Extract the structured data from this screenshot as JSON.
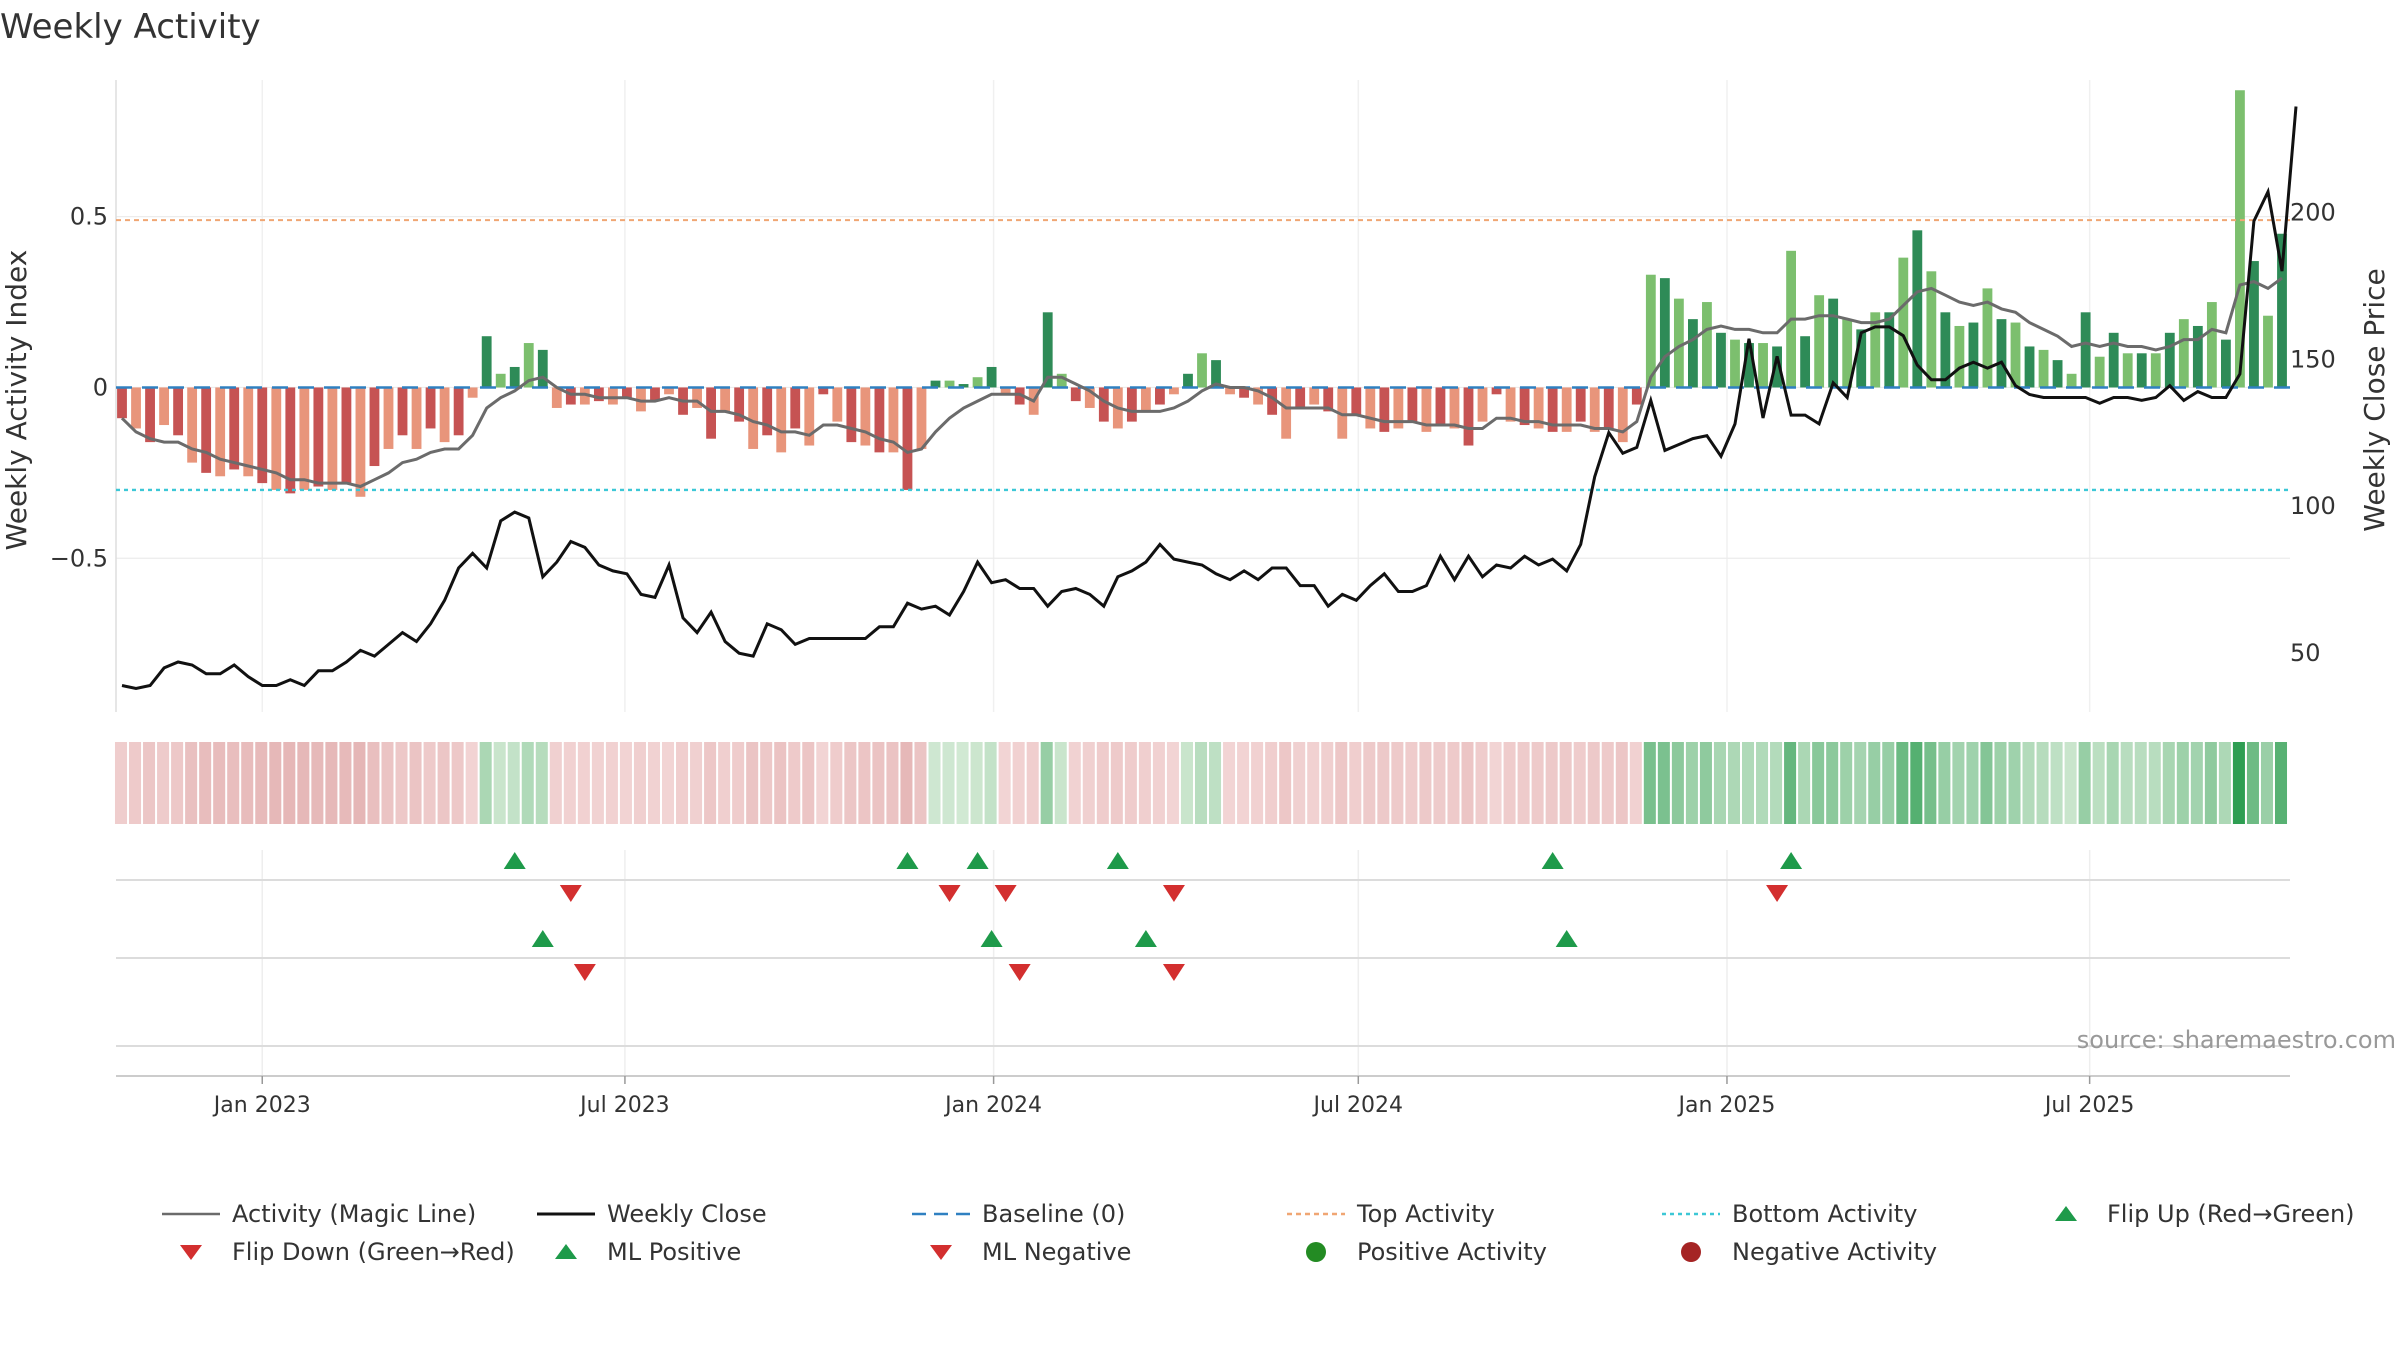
{
  "chart_data": {
    "type": "bar",
    "title": "Weekly Activity",
    "ylabel_left": "Weekly Activity Index",
    "ylabel_right": "Weekly Close Price",
    "source": "source: sharemaestro.com",
    "x_start": "2022-10-23",
    "x_step_days": 7,
    "x_ticks": [
      {
        "date": "2023-01-01",
        "label": "Jan 2023"
      },
      {
        "date": "2023-07-01",
        "label": "Jul 2023"
      },
      {
        "date": "2024-01-01",
        "label": "Jan 2024"
      },
      {
        "date": "2024-07-01",
        "label": "Jul 2024"
      },
      {
        "date": "2025-01-01",
        "label": "Jan 2025"
      },
      {
        "date": "2025-07-01",
        "label": "Jul 2025"
      }
    ],
    "y_left": {
      "lim": [
        -0.95,
        0.9
      ],
      "ticks": [
        {
          "v": 0.5,
          "label": "0.5"
        },
        {
          "v": 0,
          "label": "0"
        },
        {
          "v": -0.5,
          "label": "−0.5"
        }
      ]
    },
    "y_right": {
      "lim": [
        30,
        245
      ],
      "ticks": [
        {
          "v": 50,
          "label": "50"
        },
        {
          "v": 100,
          "label": "100"
        },
        {
          "v": 150,
          "label": "150"
        },
        {
          "v": 200,
          "label": "200"
        }
      ]
    },
    "top_activity": 0.49,
    "bottom_activity": -0.3,
    "activity": [
      -0.09,
      -0.12,
      -0.16,
      -0.11,
      -0.14,
      -0.22,
      -0.25,
      -0.26,
      -0.24,
      -0.26,
      -0.28,
      -0.3,
      -0.31,
      -0.3,
      -0.29,
      -0.3,
      -0.28,
      -0.32,
      -0.23,
      -0.18,
      -0.14,
      -0.18,
      -0.12,
      -0.16,
      -0.14,
      -0.03,
      0.15,
      0.04,
      0.06,
      0.13,
      0.11,
      -0.06,
      -0.05,
      -0.05,
      -0.04,
      -0.05,
      -0.03,
      -0.07,
      -0.04,
      -0.02,
      -0.08,
      -0.06,
      -0.15,
      -0.07,
      -0.1,
      -0.18,
      -0.14,
      -0.19,
      -0.12,
      -0.17,
      -0.02,
      -0.1,
      -0.16,
      -0.17,
      -0.19,
      -0.19,
      -0.3,
      -0.18,
      0.02,
      0.02,
      0.01,
      0.03,
      0.06,
      -0.02,
      -0.05,
      -0.08,
      0.22,
      0.04,
      -0.04,
      -0.06,
      -0.1,
      -0.12,
      -0.1,
      -0.07,
      -0.05,
      -0.02,
      0.04,
      0.1,
      0.08,
      -0.02,
      -0.03,
      -0.05,
      -0.08,
      -0.15,
      -0.06,
      -0.05,
      -0.07,
      -0.15,
      -0.08,
      -0.12,
      -0.13,
      -0.12,
      -0.1,
      -0.13,
      -0.11,
      -0.12,
      -0.17,
      -0.1,
      -0.02,
      -0.1,
      -0.11,
      -0.12,
      -0.13,
      -0.13,
      -0.1,
      -0.13,
      -0.12,
      -0.16,
      -0.05,
      0.33,
      0.32,
      0.26,
      0.2,
      0.25,
      0.16,
      0.14,
      0.13,
      0.13,
      0.12,
      0.4,
      0.15,
      0.27,
      0.26,
      0.2,
      0.17,
      0.22,
      0.22,
      0.38,
      0.46,
      0.34,
      0.22,
      0.18,
      0.19,
      0.29,
      0.2,
      0.19,
      0.12,
      0.11,
      0.08,
      0.04,
      0.22,
      0.09,
      0.16,
      0.1,
      0.1,
      0.1,
      0.16,
      0.2,
      0.18,
      0.25,
      0.14,
      0.87,
      0.37,
      0.21,
      0.45
    ],
    "magic_line": [
      -0.09,
      -0.13,
      -0.15,
      -0.16,
      -0.16,
      -0.18,
      -0.19,
      -0.21,
      -0.22,
      -0.23,
      -0.24,
      -0.25,
      -0.27,
      -0.27,
      -0.28,
      -0.28,
      -0.28,
      -0.29,
      -0.27,
      -0.25,
      -0.22,
      -0.21,
      -0.19,
      -0.18,
      -0.18,
      -0.14,
      -0.06,
      -0.03,
      -0.01,
      0.02,
      0.03,
      0,
      -0.02,
      -0.02,
      -0.03,
      -0.03,
      -0.03,
      -0.04,
      -0.04,
      -0.03,
      -0.04,
      -0.04,
      -0.07,
      -0.07,
      -0.08,
      -0.1,
      -0.11,
      -0.13,
      -0.13,
      -0.14,
      -0.11,
      -0.11,
      -0.12,
      -0.13,
      -0.15,
      -0.16,
      -0.19,
      -0.18,
      -0.13,
      -0.09,
      -0.06,
      -0.04,
      -0.02,
      -0.02,
      -0.02,
      -0.04,
      0.03,
      0.03,
      0.01,
      -0.01,
      -0.04,
      -0.06,
      -0.07,
      -0.07,
      -0.07,
      -0.06,
      -0.04,
      -0.01,
      0.01,
      0,
      0,
      -0.01,
      -0.03,
      -0.06,
      -0.06,
      -0.06,
      -0.06,
      -0.08,
      -0.08,
      -0.09,
      -0.1,
      -0.1,
      -0.1,
      -0.11,
      -0.11,
      -0.11,
      -0.12,
      -0.12,
      -0.09,
      -0.09,
      -0.1,
      -0.1,
      -0.11,
      -0.11,
      -0.11,
      -0.12,
      -0.12,
      -0.13,
      -0.1,
      0.03,
      0.09,
      0.12,
      0.14,
      0.17,
      0.18,
      0.17,
      0.17,
      0.16,
      0.16,
      0.2,
      0.2,
      0.21,
      0.21,
      0.2,
      0.19,
      0.19,
      0.2,
      0.24,
      0.28,
      0.29,
      0.27,
      0.25,
      0.24,
      0.25,
      0.23,
      0.22,
      0.19,
      0.17,
      0.15,
      0.12,
      0.13,
      0.12,
      0.13,
      0.12,
      0.12,
      0.11,
      0.12,
      0.14,
      0.14,
      0.17,
      0.16,
      0.3,
      0.31,
      0.29,
      0.32
    ],
    "weekly_close": [
      39,
      38,
      39,
      45,
      47,
      46,
      43,
      43,
      46,
      42,
      39,
      39,
      41,
      39,
      44,
      44,
      47,
      51,
      49,
      53,
      57,
      54,
      60,
      68,
      79,
      84,
      79,
      95,
      98,
      96,
      76,
      81,
      88,
      86,
      80,
      78,
      77,
      70,
      69,
      80,
      62,
      57,
      64,
      54,
      50,
      49,
      60,
      58,
      53,
      55,
      55,
      55,
      55,
      55,
      59,
      59,
      67,
      65,
      66,
      63,
      71,
      81,
      74,
      75,
      72,
      72,
      66,
      71,
      72,
      70,
      66,
      76,
      78,
      81,
      87,
      82,
      81,
      80,
      77,
      75,
      78,
      75,
      79,
      79,
      73,
      73,
      66,
      70,
      68,
      73,
      77,
      71,
      71,
      73,
      83,
      75,
      83,
      76,
      80,
      79,
      83,
      80,
      82,
      78,
      87,
      110,
      125,
      118,
      120,
      136,
      119,
      121,
      123,
      124,
      117,
      128,
      157,
      130,
      151,
      131,
      131,
      128,
      142,
      137,
      159,
      161,
      161,
      158,
      148,
      143,
      143,
      147,
      149,
      147,
      149,
      141,
      138,
      137,
      137,
      137,
      137,
      135,
      137,
      137,
      136,
      137,
      141,
      136,
      139,
      137,
      137,
      145,
      197,
      207,
      180,
      236
    ],
    "flip_up": [
      "2023-05-07",
      "2023-11-19",
      "2023-12-24",
      "2024-03-03",
      "2024-10-06",
      "2025-02-02"
    ],
    "flip_down": [
      "2023-06-04",
      "2023-12-10",
      "2024-01-07",
      "2024-03-31",
      "2025-01-26"
    ],
    "ml_positive": [
      "2023-05-21",
      "2023-12-31",
      "2024-03-17",
      "2024-10-13"
    ],
    "ml_negative": [
      "2023-06-11",
      "2024-01-14",
      "2024-03-31"
    ],
    "legend": [
      {
        "key": "magic",
        "label": "Activity (Magic Line)",
        "color": "#6b6b6b"
      },
      {
        "key": "close",
        "label": "Weekly Close",
        "color": "#111111"
      },
      {
        "key": "baseline",
        "label": "Baseline (0)",
        "color": "#2f80c1"
      },
      {
        "key": "top",
        "label": "Top Activity",
        "color": "#f0a673"
      },
      {
        "key": "bottom",
        "label": "Bottom Activity",
        "color": "#3cc7d6"
      },
      {
        "key": "flipup",
        "label": "Flip Up (Red→Green)",
        "color": "#1e9a4a"
      },
      {
        "key": "flipdown",
        "label": "Flip Down (Green→Red)",
        "color": "#d32f2f"
      },
      {
        "key": "mlpos",
        "label": "ML Positive",
        "color": "#1e9a4a"
      },
      {
        "key": "mlneg",
        "label": "ML Negative",
        "color": "#d32f2f"
      },
      {
        "key": "pos",
        "label": "Positive Activity",
        "color": "#238b23"
      },
      {
        "key": "neg",
        "label": "Negative Activity",
        "color": "#a52424"
      }
    ]
  }
}
